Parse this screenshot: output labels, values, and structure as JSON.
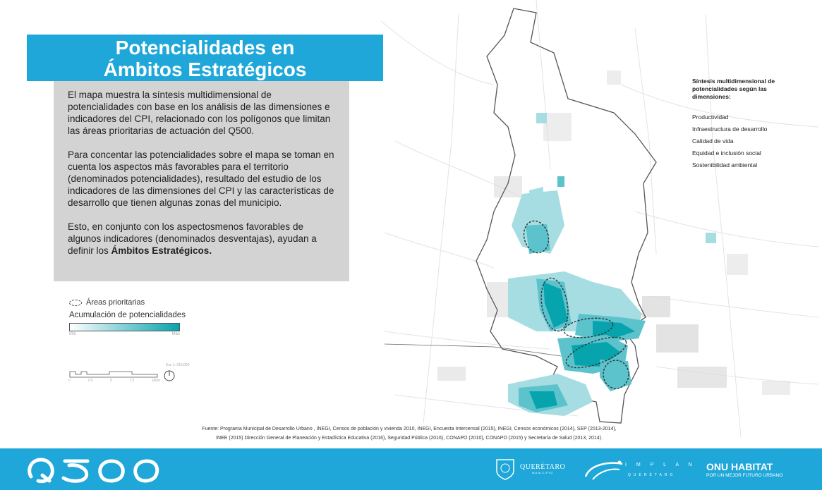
{
  "title": {
    "line1": "Potencialidades en",
    "line2": "Ámbitos Estratégicos"
  },
  "description": {
    "p1": "El mapa muestra la síntesis multidimensional de potencialidades con base en los análisis de las dimensiones e indicadores del CPI, relacionado con los polígonos que limitan las áreas prioritarias de actuación del Q500.",
    "p2": "Para concentar las potencialidades sobre el mapa se toman en cuenta los aspectos más favorables para el territorio (denominados potencialidades), resultado del estudio de los indicadores de las dimensiones del CPI y las características de desarrollo que tienen algunas zonas del municipio.",
    "p3_text": "Esto, en conjunto con los aspectosmenos favorables de algunos indicadores (denominados desventajas), ayudan a definir los ",
    "p3_bold": "Ámbitos Estratégicos."
  },
  "legend": {
    "areas_label": "Áreas prioritarias",
    "accumulation_label": "Acumulación de potencialidades",
    "min_label": "Mín",
    "max_label": "Máx",
    "ramp_colors": [
      "#ffffff",
      "#07a4ae"
    ]
  },
  "scale": {
    "ratio": "Esc 1: 210,000",
    "ticks": [
      "0",
      "2.5",
      "5",
      "7.5",
      "10km"
    ]
  },
  "synthesis": {
    "header": "Síntesis multidimensional de potencialidades según las dimensiones:",
    "items": [
      "Productividad",
      "Infraestructura de desarrollo",
      "Calidad de vida",
      "Equidad e inclusión social",
      "Sostenibilidad ambiental"
    ]
  },
  "source": {
    "line1": "Fuente: Programa Municipal de Desarrollo Urbano , INEGI, Censos de población y vivienda 2010, INEGI, Encuesta Intercensal (2015), INEGI, Censos económicos (2014), SEP (2013-2014),",
    "line2": "INEE (2015) Dirección General de Planeación y Estadística Educativa (2016), Seguridad Pública (2016), CONAPO (2010), CONAPO (2015) y Secretaría de Salud (2013, 2014)."
  },
  "footer": {
    "q500_logo": "Q500",
    "queretaro_name": "QUERÉTARO",
    "queretaro_sub": "MUNICIPIO",
    "implan_name": "I M P L A N",
    "implan_sub": "QUERÉTARO",
    "onu_name": "ONU HABITAT",
    "onu_sub": "POR UN MEJOR FUTURO URBANO"
  },
  "colors": {
    "brand_blue": "#1ea7d8",
    "teal_high": "#07a4ae",
    "teal_mid": "#5cc3cc",
    "teal_low": "#a6dde2",
    "panel_gray": "#d3d3d3"
  }
}
